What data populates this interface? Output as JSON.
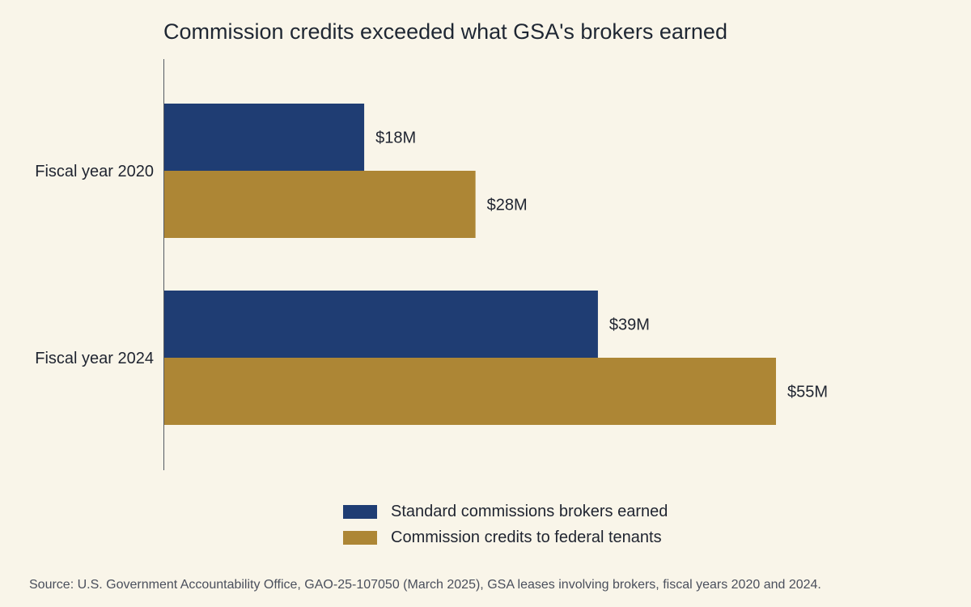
{
  "chart_data": {
    "type": "bar",
    "orientation": "horizontal",
    "title": "Commission credits exceeded what GSA's brokers earned",
    "categories": [
      "Fiscal year 2020",
      "Fiscal year 2024"
    ],
    "series": [
      {
        "name": "Standard commissions brokers earned",
        "values": [
          18,
          39
        ],
        "labels": [
          "$18M",
          "$39M"
        ],
        "color": "#1f3d73"
      },
      {
        "name": "Commission credits to federal tenants",
        "values": [
          28,
          55
        ],
        "labels": [
          "$28M",
          "$55M"
        ],
        "color": "#ad8635"
      }
    ],
    "xlim": [
      0,
      72
    ],
    "grid": false,
    "legend": "bottom",
    "source": "Source: U.S. Government Accountability Office, GAO-25-107050 (March 2025), GSA leases involving brokers, fiscal years 2020 and 2024."
  }
}
